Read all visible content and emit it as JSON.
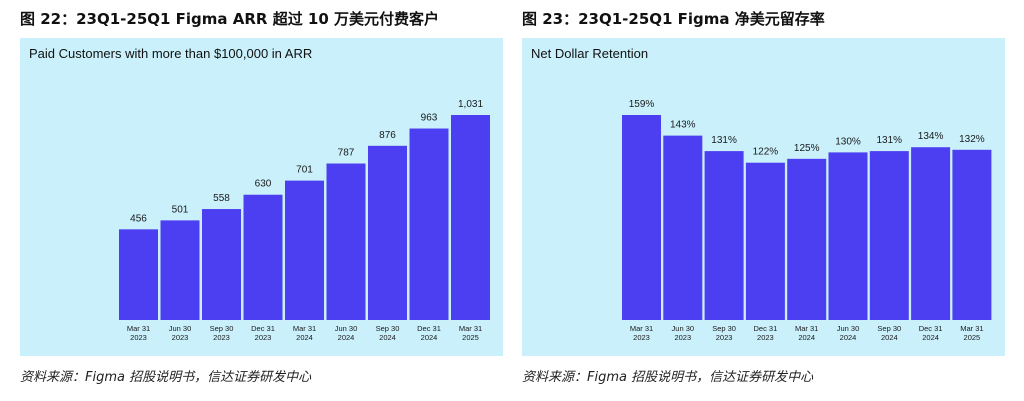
{
  "figures": [
    {
      "title": "图 22：23Q1-25Q1 Figma ARR 超过 10 万美元付费客户",
      "source": "资料来源：Figma 招股说明书，信达证券研发中心"
    },
    {
      "title": "图 23：23Q1-25Q1 Figma 净美元留存率",
      "source": "资料来源：Figma 招股说明书，信达证券研发中心"
    }
  ],
  "colors": {
    "panel_bg": "#c9f0fb",
    "bar": "#4c3ff2"
  },
  "chart_data": [
    {
      "type": "bar",
      "title": "Paid Customers with more than $100,000 in ARR",
      "categories": [
        [
          "Mar 31",
          "2023"
        ],
        [
          "Jun 30",
          "2023"
        ],
        [
          "Sep 30",
          "2023"
        ],
        [
          "Dec 31",
          "2023"
        ],
        [
          "Mar 31",
          "2024"
        ],
        [
          "Jun 30",
          "2024"
        ],
        [
          "Sep 30",
          "2024"
        ],
        [
          "Dec 31",
          "2024"
        ],
        [
          "Mar 31",
          "2025"
        ]
      ],
      "values": [
        456,
        501,
        558,
        630,
        701,
        787,
        876,
        963,
        1031
      ],
      "labels": [
        "456",
        "501",
        "558",
        "630",
        "701",
        "787",
        "876",
        "963",
        "1,031"
      ],
      "ylim": [
        0,
        1031
      ],
      "grid": false,
      "legend": "none"
    },
    {
      "type": "bar",
      "title": "Net Dollar Retention",
      "categories": [
        [
          "Mar 31",
          "2023"
        ],
        [
          "Jun 30",
          "2023"
        ],
        [
          "Sep 30",
          "2023"
        ],
        [
          "Dec 31",
          "2023"
        ],
        [
          "Mar 31",
          "2024"
        ],
        [
          "Jun 30",
          "2024"
        ],
        [
          "Sep 30",
          "2024"
        ],
        [
          "Dec 31",
          "2024"
        ],
        [
          "Mar 31",
          "2025"
        ]
      ],
      "values": [
        159,
        143,
        131,
        122,
        125,
        130,
        131,
        134,
        132
      ],
      "labels": [
        "159%",
        "143%",
        "131%",
        "122%",
        "125%",
        "130%",
        "131%",
        "134%",
        "132%"
      ],
      "ylim": [
        0,
        159
      ],
      "grid": false,
      "legend": "none"
    }
  ]
}
